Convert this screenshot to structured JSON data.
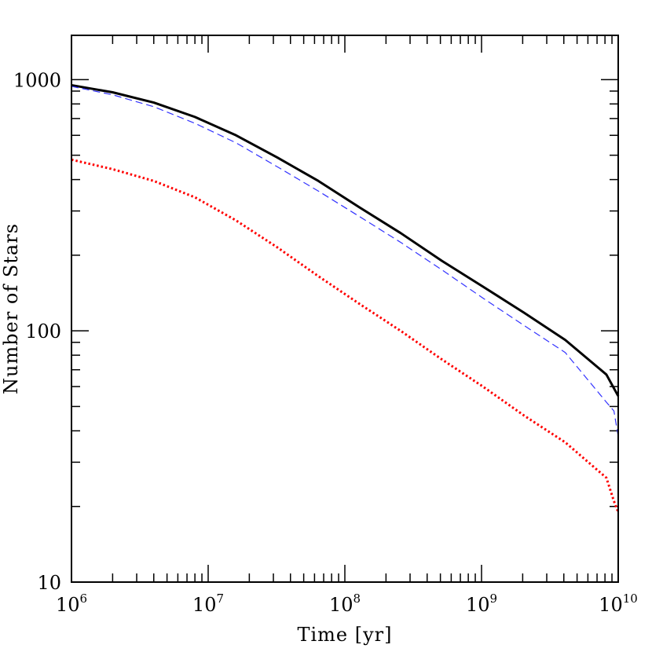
{
  "chart_data": {
    "type": "line",
    "xlabel": "Time [yr]",
    "ylabel": "Number of Stars",
    "x_scale": "log",
    "y_scale": "log",
    "xlim": [
      1000000,
      10000000000
    ],
    "ylim": [
      10,
      1500
    ],
    "x_ticks": [
      {
        "base": "10",
        "exp": "6"
      },
      {
        "base": "10",
        "exp": "7"
      },
      {
        "base": "10",
        "exp": "8"
      },
      {
        "base": "10",
        "exp": "9"
      },
      {
        "base": "10",
        "exp": "10"
      }
    ],
    "y_ticks": [
      "10",
      "100",
      "1000"
    ],
    "y_tick_values": [
      10,
      100,
      1000
    ],
    "grid": false,
    "series": [
      {
        "color": "#000000",
        "dash": "solid",
        "x": [
          1000000,
          2000000,
          4000000,
          8000000,
          16000000,
          32000000,
          64000000,
          128000000,
          256000000,
          512000000,
          1024000000,
          2048000000,
          4096000000,
          8192000000,
          10000000000
        ],
        "y": [
          950,
          890,
          810,
          710,
          600,
          490,
          395,
          310,
          245,
          190,
          150,
          118,
          92,
          67,
          55
        ]
      },
      {
        "color": "#3333ff",
        "dash": "dashed",
        "x": [
          1000000,
          2000000,
          4000000,
          8000000,
          16000000,
          32000000,
          64000000,
          128000000,
          256000000,
          512000000,
          1024000000,
          2048000000,
          4096000000,
          8192000000,
          9300000000,
          10000000000
        ],
        "y": [
          940,
          870,
          780,
          670,
          560,
          450,
          360,
          285,
          225,
          175,
          135,
          105,
          82,
          52,
          48,
          38
        ]
      },
      {
        "color": "#ff0000",
        "dash": "dotted",
        "x": [
          1000000,
          2000000,
          4000000,
          8000000,
          16000000,
          32000000,
          64000000,
          128000000,
          256000000,
          512000000,
          1024000000,
          2048000000,
          4096000000,
          8192000000,
          9300000000,
          10000000000
        ],
        "y": [
          480,
          440,
          395,
          340,
          275,
          215,
          165,
          128,
          100,
          77,
          60,
          46,
          36,
          26,
          21,
          19
        ]
      }
    ]
  }
}
